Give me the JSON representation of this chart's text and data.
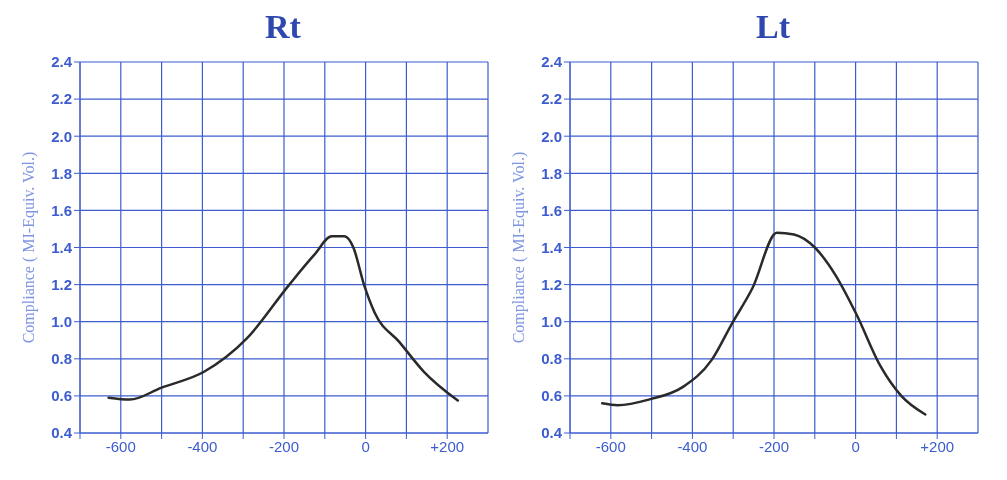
{
  "chart_data": [
    {
      "type": "line",
      "title": "Rt",
      "ylabel": "Compliance ( MI-Equiv. Vol.)",
      "x": [
        -630,
        -578,
        -500,
        -396,
        -291,
        -187,
        -126,
        -83,
        -52,
        -30,
        -4,
        22,
        83,
        143,
        226
      ],
      "series": [
        {
          "color": "#2a2a2a",
          "values": [
            0.59,
            0.58,
            0.645,
            0.73,
            0.91,
            1.2,
            1.36,
            1.46,
            1.46,
            1.4,
            1.2,
            1.05,
            0.89,
            0.73,
            0.575
          ]
        }
      ],
      "xlim": [
        -700,
        300
      ],
      "xticks": [
        {
          "value": -700,
          "label": null
        },
        -600,
        {
          "value": -500,
          "label": null
        },
        -400,
        {
          "value": -300,
          "label": null
        },
        -200,
        {
          "value": -100,
          "label": null
        },
        0,
        {
          "value": 100,
          "label": null
        },
        {
          "value": 200,
          "label": "+200"
        }
      ],
      "ylim": [
        0.4,
        2.4
      ],
      "yticks": [
        {
          "value": 0.4,
          "label": "0.4"
        },
        {
          "value": 0.6,
          "label": "0.6"
        },
        {
          "value": 0.8,
          "label": "0.8"
        },
        {
          "value": 1,
          "label": "1.0"
        },
        {
          "value": 1.2,
          "label": "1.2"
        },
        {
          "value": 1.4,
          "label": "1.4"
        },
        {
          "value": 1.6,
          "label": "1.6"
        },
        {
          "value": 1.8,
          "label": "1.8"
        },
        {
          "value": 2,
          "label": "2.0"
        },
        {
          "value": 2.2,
          "label": "2.2"
        },
        {
          "value": 2.4,
          "label": "2.4"
        }
      ],
      "grid": true,
      "marker": "none",
      "line_style": "solid"
    },
    {
      "type": "line",
      "title": "Lt",
      "ylabel": "Compliance ( MI-Equiv. Vol.)",
      "x": [
        -621,
        -583,
        -507,
        -422,
        -354,
        -303,
        -253,
        -193,
        -151,
        -100,
        -49,
        2,
        61,
        112,
        171
      ],
      "series": [
        {
          "color": "#2a2a2a",
          "values": [
            0.56,
            0.55,
            0.58,
            0.65,
            0.79,
            0.99,
            1.18,
            1.48,
            1.47,
            1.4,
            1.25,
            1.04,
            0.76,
            0.6,
            0.5
          ]
        }
      ],
      "xlim": [
        -700,
        300
      ],
      "xticks": [
        {
          "value": -700,
          "label": null
        },
        -600,
        {
          "value": -500,
          "label": null
        },
        -400,
        {
          "value": -300,
          "label": null
        },
        -200,
        {
          "value": -100,
          "label": null
        },
        0,
        {
          "value": 100,
          "label": null
        },
        {
          "value": 200,
          "label": "+200"
        }
      ],
      "ylim": [
        0.4,
        2.4
      ],
      "yticks": [
        {
          "value": 0.4,
          "label": "0.4"
        },
        {
          "value": 0.6,
          "label": "0.6"
        },
        {
          "value": 0.8,
          "label": "0.8"
        },
        {
          "value": 1,
          "label": "1.0"
        },
        {
          "value": 1.2,
          "label": "1.2"
        },
        {
          "value": 1.4,
          "label": "1.4"
        },
        {
          "value": 1.6,
          "label": "1.6"
        },
        {
          "value": 1.8,
          "label": "1.8"
        },
        {
          "value": 2,
          "label": "2.0"
        },
        {
          "value": 2.2,
          "label": "2.2"
        },
        {
          "value": 2.4,
          "label": "2.4"
        }
      ],
      "grid": true,
      "marker": "none",
      "line_style": "solid"
    }
  ]
}
